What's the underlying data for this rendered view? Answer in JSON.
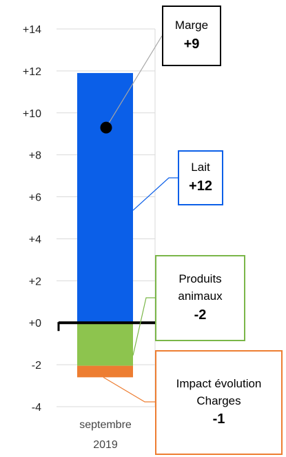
{
  "chart_data": {
    "type": "bar",
    "subtype": "stacked-waterfall",
    "categories": [
      "septembre 2019"
    ],
    "category_lines": [
      "septembre",
      "2019"
    ],
    "ylim": [
      -4,
      14
    ],
    "yticks": [
      -4,
      -2,
      0,
      2,
      4,
      6,
      8,
      10,
      12,
      14
    ],
    "ytick_labels": [
      "-4",
      "-2",
      "+0",
      "+2",
      "+4",
      "+6",
      "+8",
      "+10",
      "+12",
      "+14"
    ],
    "grid": true,
    "segments": [
      {
        "name": "Lait",
        "from": 0,
        "to": 11.9,
        "color": "#0b5fe8"
      },
      {
        "name": "Produits animaux",
        "from": 0,
        "to": -2.05,
        "color": "#8dc44e"
      },
      {
        "name": "Impact évolution Charges",
        "from": -2.05,
        "to": -2.6,
        "color": "#ed7d31"
      }
    ],
    "marker": {
      "name": "Marge",
      "value": 9.3,
      "color": "#000000"
    },
    "zero_line": {
      "value": 0,
      "color": "#000000"
    },
    "grid_color": "#d9d9d9"
  },
  "callouts": {
    "marge": {
      "label": "Marge",
      "value": "+9",
      "color": "#000000"
    },
    "lait": {
      "label": "Lait",
      "value": "+12",
      "color": "#0b5fe8"
    },
    "produits": {
      "label": "Produits animaux",
      "value": "-2",
      "color": "#7ab648"
    },
    "charges": {
      "label": "Impact évolution Charges",
      "value": "-1",
      "color": "#ed7d31"
    }
  }
}
